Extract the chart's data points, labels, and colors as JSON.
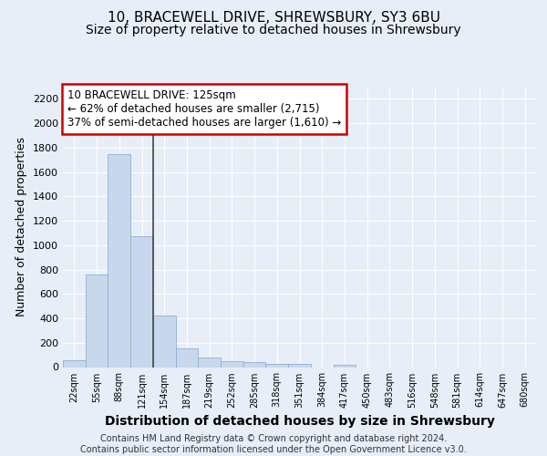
{
  "title": "10, BRACEWELL DRIVE, SHREWSBURY, SY3 6BU",
  "subtitle": "Size of property relative to detached houses in Shrewsbury",
  "xlabel": "Distribution of detached houses by size in Shrewsbury",
  "ylabel": "Number of detached properties",
  "bar_labels": [
    "22sqm",
    "55sqm",
    "88sqm",
    "121sqm",
    "154sqm",
    "187sqm",
    "219sqm",
    "252sqm",
    "285sqm",
    "318sqm",
    "351sqm",
    "384sqm",
    "417sqm",
    "450sqm",
    "483sqm",
    "516sqm",
    "548sqm",
    "581sqm",
    "614sqm",
    "647sqm",
    "680sqm"
  ],
  "bar_values": [
    55,
    760,
    1745,
    1075,
    425,
    155,
    82,
    48,
    40,
    28,
    28,
    0,
    20,
    0,
    0,
    0,
    0,
    0,
    0,
    0,
    0
  ],
  "bar_color": "#c8d8ec",
  "bar_edge_color": "#90aed0",
  "vline_color": "#444444",
  "annotation_text": "10 BRACEWELL DRIVE: 125sqm\n← 62% of detached houses are smaller (2,715)\n37% of semi-detached houses are larger (1,610) →",
  "annotation_box_color": "#ffffff",
  "annotation_box_edge": "#cc0000",
  "ylim": [
    0,
    2300
  ],
  "yticks": [
    0,
    200,
    400,
    600,
    800,
    1000,
    1200,
    1400,
    1600,
    1800,
    2000,
    2200
  ],
  "bg_color": "#e8eef8",
  "plot_bg_color": "#e8eef8",
  "grid_color": "#ffffff",
  "footer": "Contains HM Land Registry data © Crown copyright and database right 2024.\nContains public sector information licensed under the Open Government Licence v3.0.",
  "title_fontsize": 11,
  "subtitle_fontsize": 10,
  "xlabel_fontsize": 10,
  "ylabel_fontsize": 9
}
